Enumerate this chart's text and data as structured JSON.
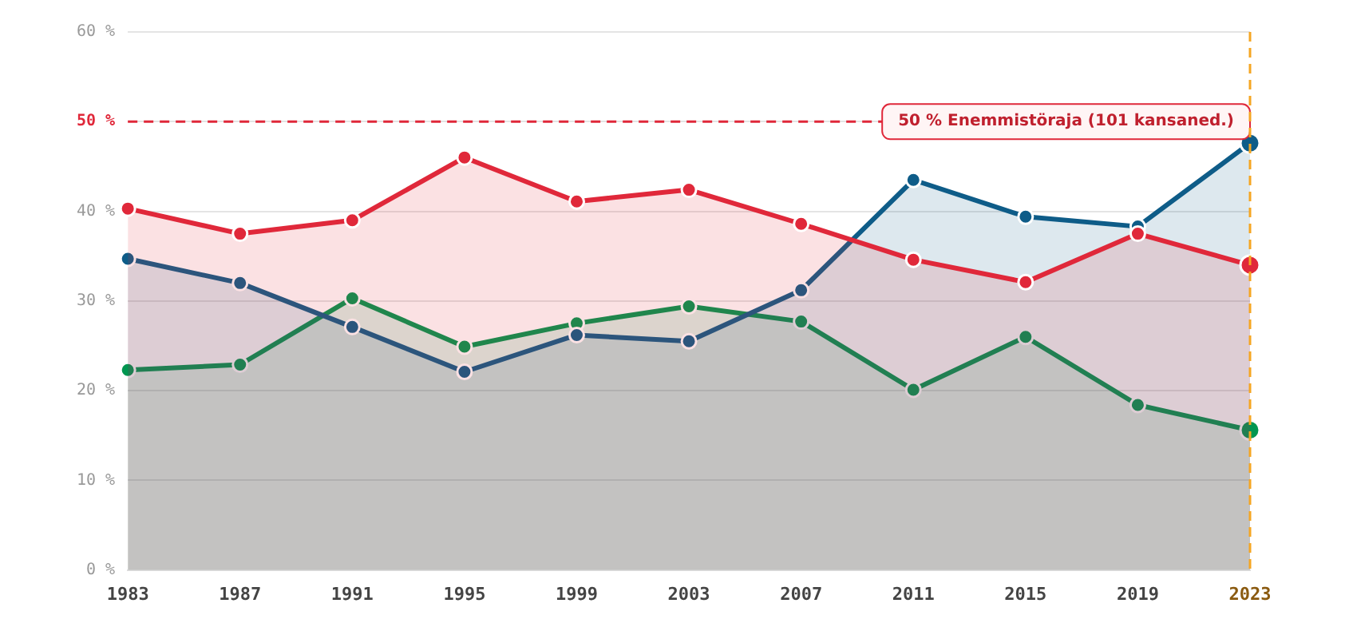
{
  "chart_data": {
    "type": "area",
    "categories": [
      "1983",
      "1987",
      "1991",
      "1995",
      "1999",
      "2003",
      "2007",
      "2011",
      "2015",
      "2019",
      "2023"
    ],
    "series": [
      {
        "color": "#e0283a",
        "values": [
          40.3,
          37.5,
          39.0,
          46.0,
          41.1,
          42.4,
          38.6,
          34.6,
          32.1,
          37.5,
          34.0
        ]
      },
      {
        "color": "#0e5c88",
        "values": [
          34.7,
          32.0,
          27.1,
          22.1,
          26.2,
          25.5,
          31.2,
          43.5,
          39.4,
          38.3,
          47.6
        ]
      },
      {
        "color": "#009650",
        "values": [
          22.3,
          22.9,
          30.3,
          24.9,
          27.5,
          29.4,
          27.7,
          20.1,
          26.0,
          18.4,
          15.6
        ]
      }
    ],
    "ylim": [
      0,
      60
    ],
    "yticks": [
      {
        "value": 0,
        "label": "0 %"
      },
      {
        "value": 10,
        "label": "10 %"
      },
      {
        "value": 20,
        "label": "20 %"
      },
      {
        "value": 30,
        "label": "30 %"
      },
      {
        "value": 40,
        "label": "40 %"
      },
      {
        "value": 50,
        "label": "50 %"
      },
      {
        "value": 60,
        "label": "60 %"
      }
    ],
    "ref_lines": [
      {
        "axis": "y",
        "value": 50,
        "label": "50 % Enemmistöraja (101 kansaned.)",
        "color": "#e0283a",
        "line_style": "dashed"
      },
      {
        "axis": "x",
        "value": "2023",
        "color": "#f5a623",
        "line_style": "dashed"
      }
    ],
    "grid": "y",
    "legend": false,
    "marker": "circle",
    "line_style": "solid"
  }
}
